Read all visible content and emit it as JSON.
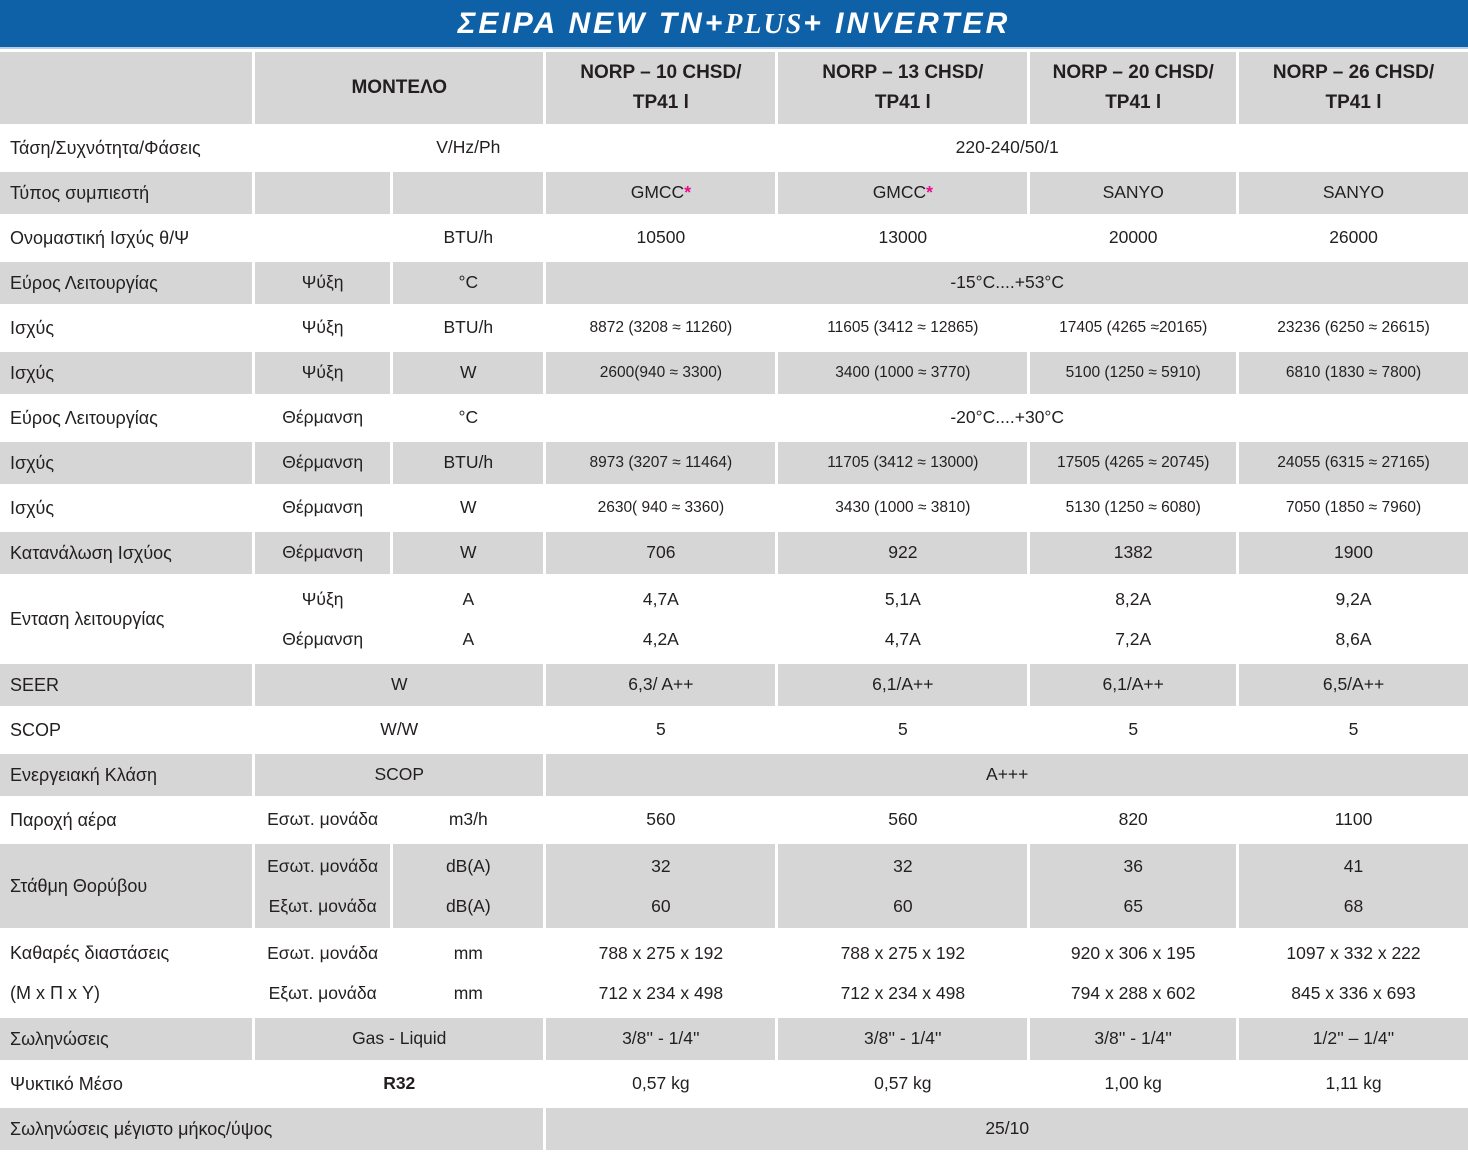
{
  "title": {
    "pre": "ΣΕΙΡΑ NEW TN+",
    "em": "PLUS",
    "post": "+ INVERTER"
  },
  "colors": {
    "header_blue": "#0E60A7",
    "row_gray": "#D6D6D7",
    "accent_magenta": "#EA0B8C",
    "text": "#231F20"
  },
  "columns": {
    "model_header": "ΜΟΝΤΕΛΟ",
    "models": [
      "NORP – 10 CHSD/\nTP41 l",
      "NORP – 13 CHSD/\nTP41 l",
      "NORP – 20 CHSD/\nTP41 l",
      "NORP – 26 CHSD/\nTP41 l"
    ]
  },
  "rows": [
    {
      "bg": "white",
      "label": "Τάση/Συχνότητα/Φάσεις",
      "sub": "",
      "unit": "V/Hz/Ph",
      "span": "220-240/50/1"
    },
    {
      "bg": "gray",
      "label": "Τύπος συμπιεστή",
      "sub": "",
      "unit": "",
      "values": [
        "GMCC*",
        "GMCC*",
        "SANYO",
        "SANYO"
      ]
    },
    {
      "bg": "white",
      "label": "Ονομαστική Ισχύς θ/Ψ",
      "sub": "",
      "unit": "BTU/h",
      "values": [
        "10500",
        "13000",
        "20000",
        "26000"
      ]
    },
    {
      "bg": "gray",
      "label": "Εύρος Λειτουργίας",
      "sub": "Ψύξη",
      "unit": "°C",
      "span": "-15°C....+53°C"
    },
    {
      "bg": "white",
      "label": "Ισχύς",
      "sub": "Ψύξη",
      "unit": "BTU/h",
      "values": [
        "8872 (3208 ≈ 11260)",
        "11605 (3412 ≈ 12865)",
        "17405 (4265 ≈20165)",
        "23236 (6250 ≈ 26615)"
      ]
    },
    {
      "bg": "gray",
      "label": "Ισχύς",
      "sub": "Ψύξη",
      "unit": "W",
      "values": [
        "2600(940 ≈ 3300)",
        "3400 (1000 ≈ 3770)",
        "5100 (1250 ≈ 5910)",
        "6810 (1830 ≈ 7800)"
      ]
    },
    {
      "bg": "white",
      "label": "Εύρος Λειτουργίας",
      "sub": "Θέρμανση",
      "unit": "°C",
      "span": "-20°C....+30°C"
    },
    {
      "bg": "gray",
      "label": "Ισχύς",
      "sub": "Θέρμανση",
      "unit": "BTU/h",
      "values": [
        "8973 (3207 ≈ 11464)",
        "11705 (3412 ≈ 13000)",
        "17505 (4265 ≈ 20745)",
        "24055 (6315 ≈ 27165)"
      ]
    },
    {
      "bg": "white",
      "label": "Ισχύς",
      "sub": "Θέρμανση",
      "unit": "W",
      "values": [
        "2630( 940 ≈ 3360)",
        "3430 (1000 ≈ 3810)",
        "5130 (1250 ≈ 6080)",
        "7050 (1850 ≈ 7960)"
      ]
    },
    {
      "bg": "gray",
      "label": "Κατανάλωση Ισχύος",
      "sub": "Θέρμανση",
      "unit": "W",
      "values": [
        "706",
        "922",
        "1382",
        "1900"
      ]
    },
    {
      "bg": "white",
      "label": "Ενταση λειτουργίας",
      "sub": "Ψύξη\nΘέρμανση",
      "unit": "A\nA",
      "values": [
        "4,7A\n4,2A",
        "5,1A\n4,7A",
        "8,2A\n7,2A",
        "9,2A\n8,6A"
      ]
    },
    {
      "bg": "gray",
      "label": "SEER",
      "subspan": "W",
      "values": [
        "6,3/ A++",
        "6,1/A++",
        "6,1/A++",
        "6,5/A++"
      ]
    },
    {
      "bg": "white",
      "label": "SCOP",
      "subspan": "W/W",
      "values": [
        "5",
        "5",
        "5",
        "5"
      ]
    },
    {
      "bg": "gray",
      "label": "Ενεργειακή Κλάση",
      "subspan": "SCOP",
      "span": "A+++"
    },
    {
      "bg": "white",
      "label": "Παροχή αέρα",
      "sub": "Εσωτ. μονάδα",
      "unit": "m3/h",
      "values": [
        "560",
        "560",
        "820",
        "1100"
      ]
    },
    {
      "bg": "gray",
      "label": "Στάθμη Θορύβου",
      "sub": "Εσωτ. μονάδα\nΕξωτ. μονάδα",
      "unit": "dB(A)\ndB(A)",
      "values": [
        "32\n60",
        "32\n60",
        "36\n65",
        "41\n68"
      ]
    },
    {
      "bg": "white",
      "label": "Καθαρές διαστάσεις\n(Μ x Π x Υ)",
      "sub": "Εσωτ. μονάδα\nΕξωτ. μονάδα",
      "unit": "mm\nmm",
      "values": [
        "788 x 275 x 192\n712 x 234 x 498",
        "788 x 275 x 192\n712 x 234 x 498",
        "920 x 306 x 195\n794 x 288 x 602",
        "1097 x 332 x 222\n845 x 336 x 693"
      ]
    },
    {
      "bg": "gray",
      "label": "Σωληνώσεις",
      "subspan": "Gas - Liquid",
      "values": [
        "3/8'' - 1/4''",
        "3/8'' - 1/4''",
        "3/8'' -  1/4''",
        "1/2'' – 1/4''"
      ]
    },
    {
      "bg": "white",
      "label": "Ψυκτικό Μέσο",
      "subspan": "R32",
      "subspan_bold": true,
      "values": [
        "0,57 kg",
        "0,57 kg",
        "1,00 kg",
        "1,11 kg"
      ]
    },
    {
      "bg": "gray",
      "label": "Σωληνώσεις μέγιστο μήκος/ύψος",
      "label_colspan": 3,
      "span": "25/10"
    }
  ]
}
